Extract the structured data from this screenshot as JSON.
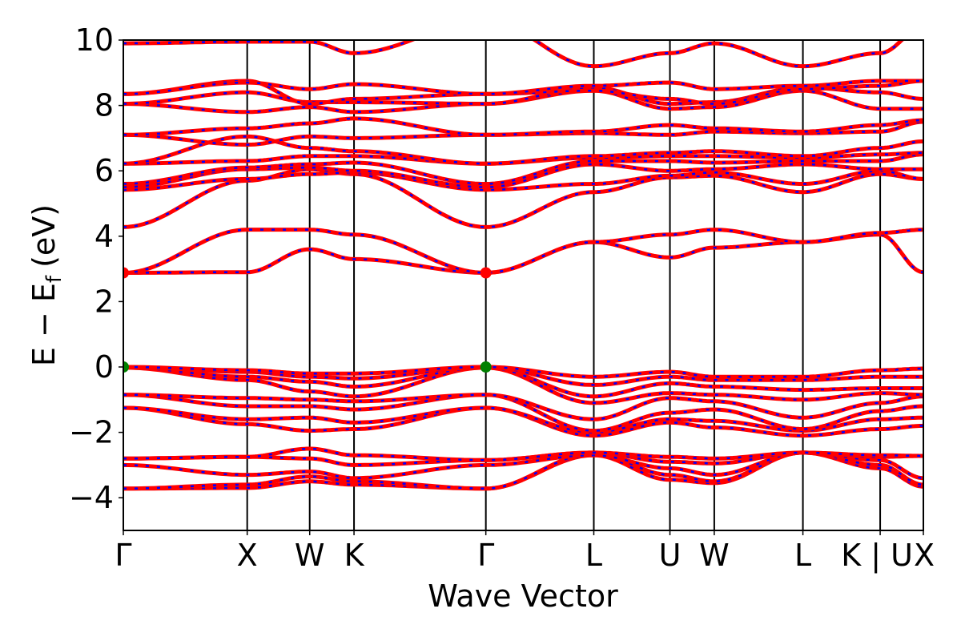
{
  "chart_data": {
    "type": "line",
    "xlabel": "Wave Vector",
    "ylabel_parts": {
      "main": "E − E",
      "sub": "f",
      "unit": "(eV)"
    },
    "ylim": [
      -5,
      10
    ],
    "yticks": [
      {
        "value": -4,
        "label": "−4"
      },
      {
        "value": -2,
        "label": "−2"
      },
      {
        "value": 0,
        "label": "0"
      },
      {
        "value": 2,
        "label": "2"
      },
      {
        "value": 4,
        "label": "4"
      },
      {
        "value": 6,
        "label": "6"
      },
      {
        "value": 8,
        "label": "8"
      },
      {
        "value": 10,
        "label": "10"
      }
    ],
    "xlim": [
      0,
      7.04
    ],
    "kpoints": [
      {
        "label": "Γ",
        "x": 0.0
      },
      {
        "label": "X",
        "x": 1.09
      },
      {
        "label": "W",
        "x": 1.64
      },
      {
        "label": "K",
        "x": 2.03
      },
      {
        "label": "Γ",
        "x": 3.19
      },
      {
        "label": "L",
        "x": 4.14
      },
      {
        "label": "U",
        "x": 4.81
      },
      {
        "label": "W",
        "x": 5.2
      },
      {
        "label": "L",
        "x": 5.98
      },
      {
        "label": "K | U",
        "x": 6.66
      },
      {
        "label": "X",
        "x": 7.04
      }
    ],
    "series_style": {
      "solid_color": "#ff0000",
      "dash_color": "#0000ff"
    },
    "marker_colors": {
      "cbm": "#ff0000",
      "vbm": "#008000"
    },
    "markers": [
      {
        "kind": "cbm",
        "x": 0.0,
        "y": 2.88
      },
      {
        "kind": "cbm",
        "x": 3.19,
        "y": 2.88
      },
      {
        "kind": "vbm",
        "x": 0.0,
        "y": 0.0
      },
      {
        "kind": "vbm",
        "x": 3.19,
        "y": 0.0
      }
    ],
    "bands": [
      [
        -3.72,
        -3.7,
        -3.5,
        -3.6,
        -3.72,
        -2.7,
        -3.45,
        -3.55,
        -2.62,
        -3.1,
        -3.66
      ],
      [
        -3.72,
        -3.6,
        -3.35,
        -3.5,
        -3.72,
        -2.65,
        -3.3,
        -3.5,
        -2.62,
        -3.0,
        -3.6
      ],
      [
        -3.0,
        -3.3,
        -3.2,
        -3.4,
        -3.0,
        -2.7,
        -3.1,
        -3.3,
        -2.62,
        -2.85,
        -3.4
      ],
      [
        -2.8,
        -2.75,
        -2.8,
        -3.0,
        -2.85,
        -2.62,
        -2.9,
        -2.95,
        -2.62,
        -2.75,
        -2.72
      ],
      [
        -2.8,
        -2.75,
        -2.5,
        -2.7,
        -2.85,
        -2.62,
        -2.75,
        -2.8,
        -2.62,
        -2.7,
        -2.72
      ],
      [
        -1.25,
        -1.75,
        -1.95,
        -1.9,
        -1.25,
        -2.1,
        -1.7,
        -1.85,
        -2.1,
        -1.9,
        -1.8
      ],
      [
        -1.25,
        -1.6,
        -1.55,
        -1.7,
        -1.25,
        -2.0,
        -1.6,
        -1.65,
        -1.95,
        -1.6,
        -1.55
      ],
      [
        -0.85,
        -1.2,
        -1.2,
        -1.3,
        -0.85,
        -1.95,
        -1.4,
        -1.3,
        -1.9,
        -1.35,
        -1.2
      ],
      [
        -0.85,
        -0.95,
        -1.0,
        -1.05,
        -0.85,
        -1.6,
        -0.95,
        -1.05,
        -1.55,
        -1.1,
        -0.9
      ],
      [
        -0.02,
        -0.4,
        -0.75,
        -0.9,
        -0.02,
        -1.1,
        -0.8,
        -0.85,
        -1.0,
        -0.8,
        -0.85
      ],
      [
        -0.02,
        -0.3,
        -0.45,
        -0.6,
        -0.02,
        -0.9,
        -0.5,
        -0.6,
        -0.7,
        -0.65,
        -0.65
      ],
      [
        0.0,
        -0.15,
        -0.3,
        -0.35,
        0.0,
        -0.55,
        -0.3,
        -0.4,
        -0.4,
        -0.3,
        -0.3
      ],
      [
        0.0,
        -0.1,
        -0.2,
        -0.2,
        0.0,
        -0.3,
        -0.15,
        -0.3,
        -0.3,
        -0.1,
        -0.05
      ],
      [
        2.88,
        2.9,
        3.6,
        3.3,
        2.88,
        3.82,
        3.35,
        3.65,
        3.82,
        4.05,
        2.9
      ],
      [
        2.88,
        4.2,
        4.2,
        4.05,
        2.88,
        3.82,
        4.05,
        4.2,
        3.82,
        4.1,
        4.2
      ],
      [
        4.28,
        5.7,
        6.05,
        5.9,
        4.28,
        5.35,
        5.8,
        5.85,
        5.35,
        5.9,
        5.75
      ],
      [
        5.42,
        5.75,
        5.9,
        5.95,
        5.42,
        5.6,
        5.85,
        5.95,
        5.6,
        6.0,
        5.75
      ],
      [
        5.5,
        6.05,
        6.1,
        6.0,
        5.5,
        6.2,
        6.0,
        6.05,
        6.2,
        6.05,
        6.05
      ],
      [
        5.6,
        6.1,
        6.2,
        6.25,
        5.6,
        6.3,
        6.3,
        6.25,
        6.3,
        6.3,
        6.5
      ],
      [
        6.22,
        6.3,
        6.45,
        6.45,
        6.22,
        6.4,
        6.45,
        6.45,
        6.4,
        6.5,
        6.55
      ],
      [
        6.22,
        7.05,
        6.7,
        6.6,
        6.22,
        6.45,
        6.55,
        6.6,
        6.45,
        6.7,
        6.9
      ],
      [
        7.1,
        6.8,
        7.05,
        7.0,
        7.1,
        7.15,
        7.1,
        7.2,
        7.15,
        7.2,
        7.5
      ],
      [
        7.1,
        7.3,
        7.45,
        7.6,
        7.1,
        7.2,
        7.4,
        7.3,
        7.2,
        7.4,
        7.55
      ],
      [
        8.05,
        7.8,
        7.95,
        7.8,
        8.05,
        8.45,
        7.9,
        7.95,
        8.45,
        7.9,
        7.9
      ],
      [
        8.05,
        8.4,
        8.1,
        8.1,
        8.05,
        8.55,
        8.05,
        8.1,
        8.55,
        8.4,
        8.2
      ],
      [
        8.35,
        8.75,
        8.05,
        8.2,
        8.35,
        8.45,
        8.2,
        8.05,
        8.5,
        8.6,
        8.75
      ],
      [
        8.35,
        8.7,
        8.5,
        8.65,
        8.35,
        8.6,
        8.7,
        8.5,
        8.6,
        8.75,
        8.75
      ],
      [
        9.9,
        9.95,
        9.95,
        9.6,
        10.6,
        9.2,
        9.6,
        9.9,
        9.2,
        9.6,
        10.4
      ]
    ]
  }
}
